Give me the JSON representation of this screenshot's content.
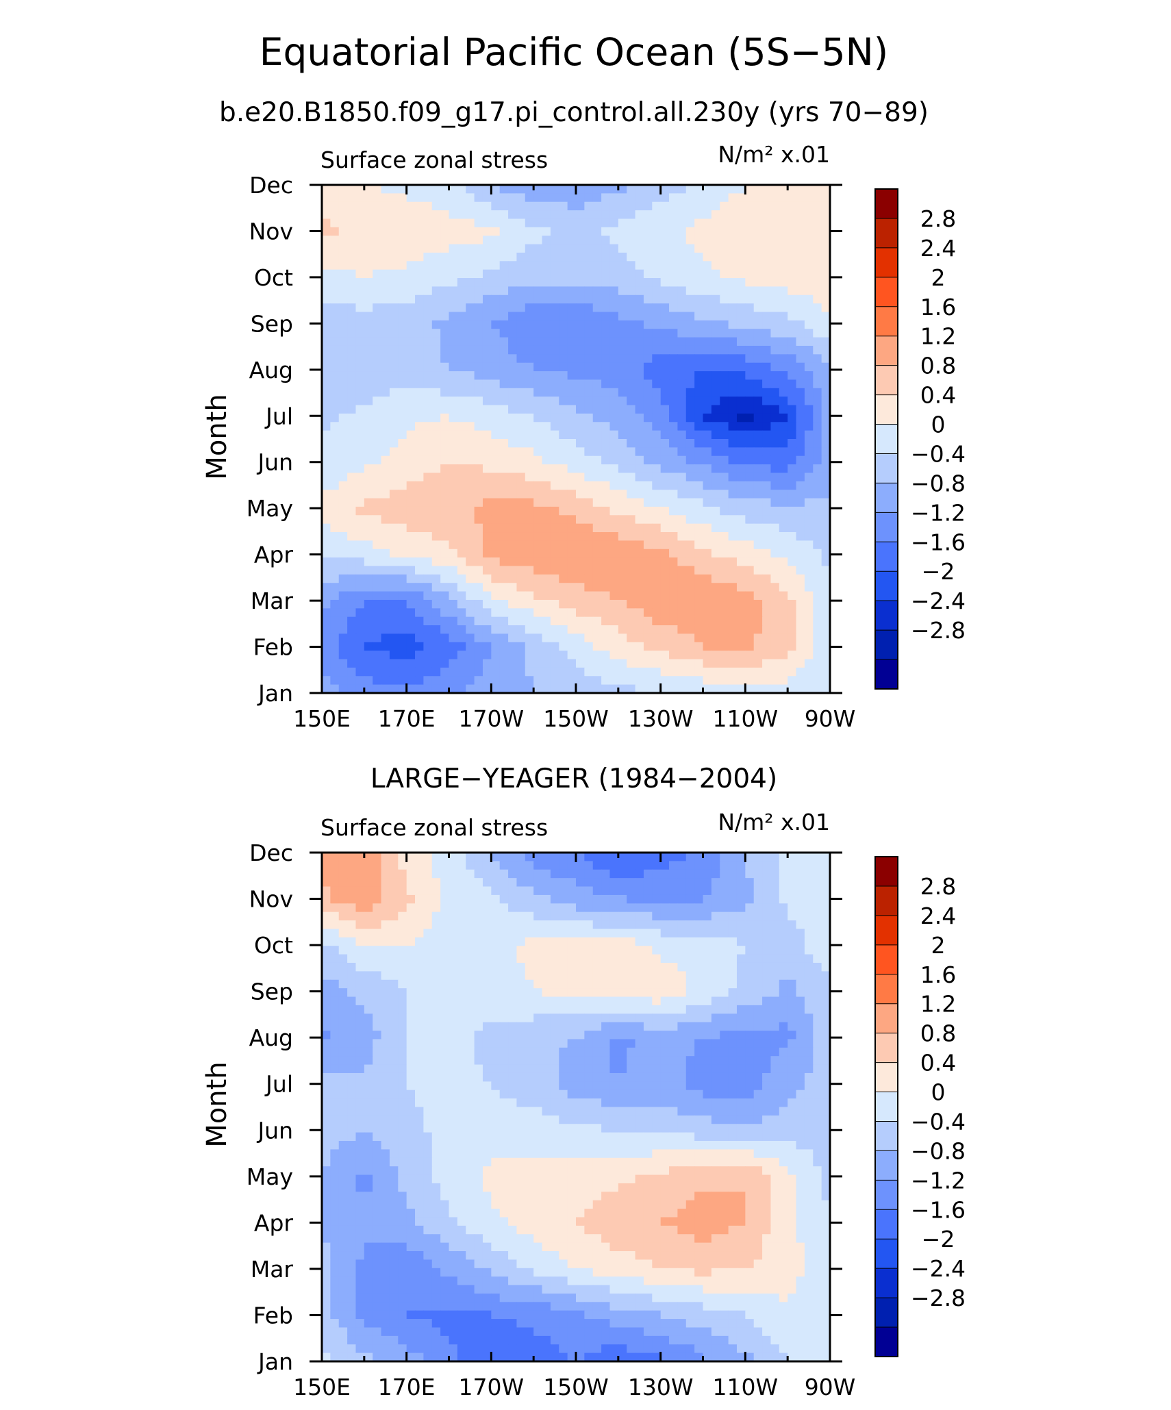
{
  "figure": {
    "title": "Equatorial Pacific Ocean (5S−5N)",
    "subtitle": "b.e20.B1850.f09_g17.pi_control.all.230y (yrs 70−89)"
  },
  "colorbar": {
    "levels": [
      "2.8",
      "2.4",
      "2",
      "1.6",
      "1.2",
      "0.8",
      "0.4",
      "0",
      "−0.4",
      "−0.8",
      "−1.2",
      "−1.6",
      "−2",
      "−2.4",
      "−2.8"
    ],
    "colors": [
      "#8b0000",
      "#bb2200",
      "#e33100",
      "#ff5520",
      "#ff7a45",
      "#fda782",
      "#fdcab3",
      "#fde9db",
      "#d6e8fd",
      "#b5cdfd",
      "#8cadfd",
      "#6d92fd",
      "#4a74fd",
      "#2356f2",
      "#0a2fd0",
      "#0020b0",
      "#010094"
    ]
  },
  "chart_data": [
    {
      "type": "heatmap",
      "panel_title": "",
      "left_label": "Surface zonal stress",
      "right_label": "N/m² x.01",
      "ylabel": "Month",
      "xlabel": "",
      "x_ticks": [
        "150E",
        "170E",
        "170W",
        "150W",
        "130W",
        "110W",
        "90W"
      ],
      "x_range": [
        "150E",
        "90W"
      ],
      "y_ticks": [
        "Jan",
        "Feb",
        "Mar",
        "Apr",
        "May",
        "Jun",
        "Jul",
        "Aug",
        "Sep",
        "Oct",
        "Nov",
        "Dec"
      ],
      "x": [
        "150E",
        "160E",
        "170E",
        "180",
        "170W",
        "160W",
        "150W",
        "140W",
        "130W",
        "120W",
        "110W",
        "100W",
        "90W"
      ],
      "y": [
        "Jan",
        "Feb",
        "Mar",
        "Apr",
        "May",
        "Jun",
        "Jul",
        "Aug",
        "Sep",
        "Oct",
        "Nov",
        "Dec"
      ],
      "values": [
        [
          -0.6,
          -1.0,
          -1.1,
          -0.9,
          -0.6,
          -0.4,
          -0.3,
          -0.1,
          0.0,
          0.1,
          0.2,
          0.2,
          0.0
        ],
        [
          -1.0,
          -1.6,
          -1.8,
          -1.4,
          -0.8,
          -0.3,
          0.2,
          0.6,
          0.9,
          1.2,
          1.3,
          0.9,
          0.1
        ],
        [
          -0.7,
          -1.2,
          -1.2,
          -0.5,
          0.3,
          0.7,
          1.0,
          1.2,
          1.5,
          1.6,
          1.4,
          0.9,
          0.1
        ],
        [
          0.1,
          0.2,
          0.5,
          0.7,
          1.3,
          1.5,
          1.6,
          1.5,
          1.3,
          0.9,
          0.6,
          0.3,
          -0.1
        ],
        [
          0.5,
          0.9,
          1.0,
          1.1,
          1.3,
          1.3,
          1.1,
          0.7,
          0.4,
          0.1,
          -0.2,
          -0.3,
          -0.3
        ],
        [
          0.1,
          0.3,
          0.6,
          0.8,
          0.7,
          0.5,
          0.2,
          -0.1,
          -0.5,
          -0.9,
          -1.3,
          -1.4,
          -0.6
        ],
        [
          -0.1,
          0.1,
          0.3,
          0.4,
          0.2,
          0.0,
          -0.3,
          -0.6,
          -1.0,
          -2.0,
          -2.5,
          -2.0,
          -0.6
        ],
        [
          -0.4,
          -0.3,
          -0.2,
          -0.4,
          -0.6,
          -0.8,
          -0.9,
          -1.0,
          -1.4,
          -1.6,
          -1.5,
          -1.1,
          -0.5
        ],
        [
          -0.2,
          -0.2,
          -0.2,
          -0.5,
          -0.8,
          -1.1,
          -1.2,
          -0.9,
          -0.7,
          -0.5,
          -0.3,
          -0.1,
          0.3
        ],
        [
          0.3,
          0.4,
          0.3,
          0.1,
          -0.1,
          -0.3,
          -0.3,
          -0.2,
          0.1,
          0.3,
          0.5,
          0.6,
          0.7
        ],
        [
          0.9,
          0.7,
          0.7,
          0.6,
          0.5,
          0.1,
          -0.1,
          0.1,
          0.3,
          0.5,
          0.7,
          0.8,
          0.8
        ],
        [
          0.5,
          0.4,
          0.3,
          0.1,
          -0.4,
          -0.7,
          -0.7,
          -0.5,
          -0.2,
          0.1,
          0.4,
          0.5,
          0.6
        ]
      ],
      "color_levels": [
        -2.8,
        -2.4,
        -2.0,
        -1.6,
        -1.2,
        -0.8,
        -0.4,
        0,
        0.4,
        0.8,
        1.2,
        1.6,
        2.0,
        2.4,
        2.8
      ]
    },
    {
      "type": "heatmap",
      "panel_title": "LARGE−YEAGER (1984−2004)",
      "left_label": "Surface zonal stress",
      "right_label": "N/m² x.01",
      "ylabel": "Month",
      "xlabel": "",
      "x_ticks": [
        "150E",
        "170E",
        "170W",
        "150W",
        "130W",
        "110W",
        "90W"
      ],
      "x_range": [
        "150E",
        "90W"
      ],
      "y_ticks": [
        "Jan",
        "Feb",
        "Mar",
        "Apr",
        "May",
        "Jun",
        "Jul",
        "Aug",
        "Sep",
        "Oct",
        "Nov",
        "Dec"
      ],
      "x": [
        "150E",
        "160E",
        "170E",
        "180",
        "170W",
        "160W",
        "150W",
        "140W",
        "130W",
        "120W",
        "110W",
        "100W",
        "90W"
      ],
      "y": [
        "Jan",
        "Feb",
        "Mar",
        "Apr",
        "May",
        "Jun",
        "Jul",
        "Aug",
        "Sep",
        "Oct",
        "Nov",
        "Dec"
      ],
      "values": [
        [
          0.1,
          -0.3,
          -0.6,
          -1.1,
          -1.6,
          -1.4,
          -1.2,
          -1.5,
          -1.3,
          -0.9,
          -0.5,
          0.0,
          0.1
        ],
        [
          -0.2,
          -0.9,
          -1.2,
          -1.3,
          -1.2,
          -1.1,
          -0.9,
          -0.6,
          -0.4,
          -0.2,
          0.0,
          0.3,
          0.1
        ],
        [
          -0.3,
          -0.9,
          -1.1,
          -0.7,
          -0.3,
          0.1,
          0.4,
          0.6,
          0.8,
          0.9,
          0.8,
          0.6,
          0.1
        ],
        [
          -0.4,
          -0.7,
          -0.5,
          -0.1,
          0.3,
          0.6,
          0.8,
          1.1,
          1.2,
          1.4,
          1.2,
          0.5,
          0.0
        ],
        [
          -0.4,
          -0.9,
          -0.3,
          0.2,
          0.5,
          0.6,
          0.6,
          0.7,
          0.9,
          1.1,
          1.2,
          0.5,
          -0.1
        ],
        [
          -0.2,
          -0.4,
          -0.1,
          0.1,
          0.2,
          0.2,
          0.1,
          0.0,
          -0.1,
          -0.2,
          -0.3,
          -0.2,
          -0.2
        ],
        [
          -0.3,
          -0.3,
          0.0,
          0.1,
          0.0,
          -0.2,
          -0.6,
          -0.8,
          -0.6,
          -1.0,
          -1.0,
          -0.5,
          -0.2
        ],
        [
          -0.9,
          -0.6,
          0.0,
          0.1,
          -0.1,
          -0.3,
          -0.4,
          -0.9,
          -0.6,
          -0.8,
          -1.0,
          -0.9,
          -0.2
        ],
        [
          -0.6,
          -0.3,
          0.0,
          0.1,
          0.2,
          0.4,
          0.5,
          0.6,
          0.7,
          0.3,
          -0.1,
          -0.5,
          -0.1
        ],
        [
          -0.1,
          0.4,
          0.4,
          0.2,
          0.3,
          0.5,
          0.5,
          0.6,
          0.3,
          0.2,
          0.0,
          -0.2,
          0.3
        ],
        [
          1.1,
          1.5,
          0.9,
          0.3,
          0.1,
          -0.3,
          -0.6,
          -0.8,
          -0.9,
          -0.8,
          -0.5,
          0.1,
          0.1
        ],
        [
          1.4,
          1.6,
          0.6,
          0.2,
          -0.4,
          -1.0,
          -1.2,
          -1.6,
          -1.4,
          -1.1,
          -0.4,
          0.1,
          0.0
        ]
      ],
      "color_levels": [
        -2.8,
        -2.4,
        -2.0,
        -1.6,
        -1.2,
        -0.8,
        -0.4,
        0,
        0.4,
        0.8,
        1.2,
        1.6,
        2.0,
        2.4,
        2.8
      ]
    }
  ]
}
